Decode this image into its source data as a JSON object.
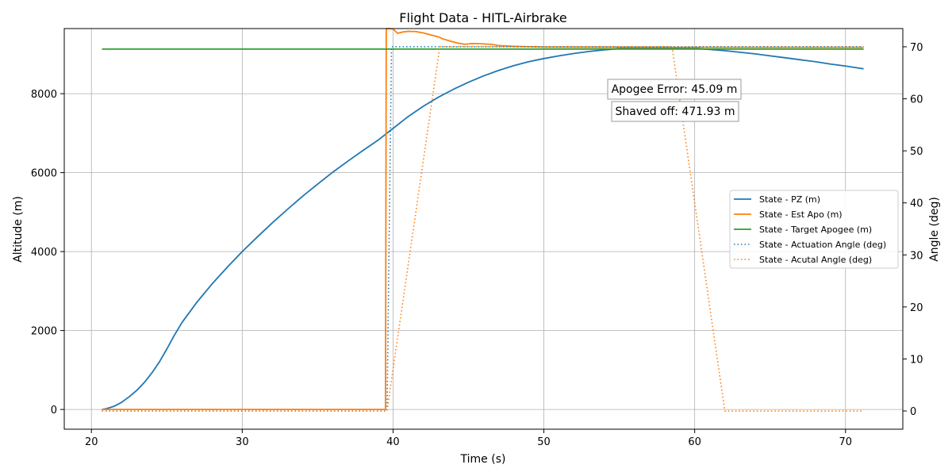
{
  "chart_data": {
    "type": "line",
    "title": "Flight Data - HITL-Airbrake",
    "xlabel": "Time (s)",
    "ylabel": "Altitude (m)",
    "y2label": "Angle (deg)",
    "xlim": [
      18.2,
      73.8
    ],
    "ylim": [
      -500,
      9650
    ],
    "y2lim": [
      -3.5,
      73.5
    ],
    "xticks": [
      20,
      30,
      40,
      50,
      60,
      70
    ],
    "yticks": [
      0,
      2000,
      4000,
      6000,
      8000
    ],
    "y2ticks": [
      0,
      10,
      20,
      30,
      40,
      50,
      60,
      70
    ],
    "grid": true,
    "legend_position": "center-right",
    "annotations": [
      {
        "text": "Apogee Error: 45.09 m"
      },
      {
        "text": "Shaved off: 471.93 m"
      }
    ],
    "series": [
      {
        "name": "State - PZ (m)",
        "axis": "left",
        "color": "#1f77b4",
        "style": "solid",
        "x": [
          20.7,
          21.0,
          21.5,
          22.0,
          22.5,
          23.0,
          23.5,
          24.0,
          24.5,
          25.0,
          25.5,
          26.0,
          27.0,
          28.0,
          29.0,
          30.0,
          31.0,
          32.0,
          33.0,
          34.0,
          35.0,
          36.0,
          37.0,
          38.0,
          39.0,
          40.0,
          41.0,
          42.0,
          43.0,
          44.0,
          45.0,
          46.0,
          47.0,
          48.0,
          49.0,
          50.0,
          51.0,
          52.0,
          53.0,
          54.0,
          55.0,
          56.0,
          57.0,
          58.0,
          59.0,
          60.0,
          61.0,
          62.0,
          63.0,
          64.0,
          65.0,
          66.0,
          67.0,
          68.0,
          69.0,
          70.0,
          71.2
        ],
        "values": [
          0,
          20,
          80,
          180,
          320,
          480,
          680,
          920,
          1200,
          1530,
          1880,
          2200,
          2720,
          3180,
          3600,
          4000,
          4370,
          4730,
          5070,
          5400,
          5710,
          6010,
          6290,
          6560,
          6820,
          7120,
          7420,
          7680,
          7910,
          8110,
          8290,
          8450,
          8590,
          8710,
          8810,
          8890,
          8960,
          9020,
          9070,
          9110,
          9140,
          9155,
          9160,
          9160,
          9155,
          9145,
          9120,
          9090,
          9050,
          9010,
          8960,
          8910,
          8860,
          8810,
          8750,
          8700,
          8630
        ]
      },
      {
        "name": "State - Est Apo (m)",
        "axis": "left",
        "color": "#ff7f0e",
        "style": "solid",
        "x": [
          20.7,
          39.5,
          39.55,
          39.7,
          40.0,
          40.3,
          40.6,
          41.0,
          41.5,
          42.0,
          42.5,
          43.0,
          43.3,
          43.8,
          44.3,
          44.8,
          45.2,
          45.8,
          46.5,
          47.0,
          47.5,
          48.0,
          49.0,
          50.0,
          55.0,
          60.0,
          65.0,
          71.2
        ],
        "values": [
          0,
          0,
          9650,
          9650,
          9640,
          9530,
          9560,
          9580,
          9575,
          9540,
          9490,
          9440,
          9390,
          9330,
          9280,
          9250,
          9270,
          9265,
          9250,
          9220,
          9210,
          9200,
          9190,
          9180,
          9175,
          9175,
          9175,
          9175
        ]
      },
      {
        "name": "State - Target Apogee (m)",
        "axis": "left",
        "color": "#2ca02c",
        "style": "solid",
        "x": [
          20.7,
          71.2
        ],
        "values": [
          9130,
          9130
        ]
      },
      {
        "name": "State - Actuation Angle (deg)",
        "axis": "right",
        "color": "#1f77b4",
        "style": "dotted",
        "x": [
          20.7,
          39.6,
          39.9,
          71.2
        ],
        "values": [
          0,
          0,
          70,
          70
        ]
      },
      {
        "name": "State - Acutal Angle (deg)",
        "axis": "right",
        "color": "#ff7f0e",
        "style": "dotted",
        "x": [
          20.7,
          39.6,
          43.1,
          58.5,
          62.0,
          71.2
        ],
        "values": [
          0,
          0,
          70,
          70,
          0,
          0
        ]
      }
    ]
  }
}
